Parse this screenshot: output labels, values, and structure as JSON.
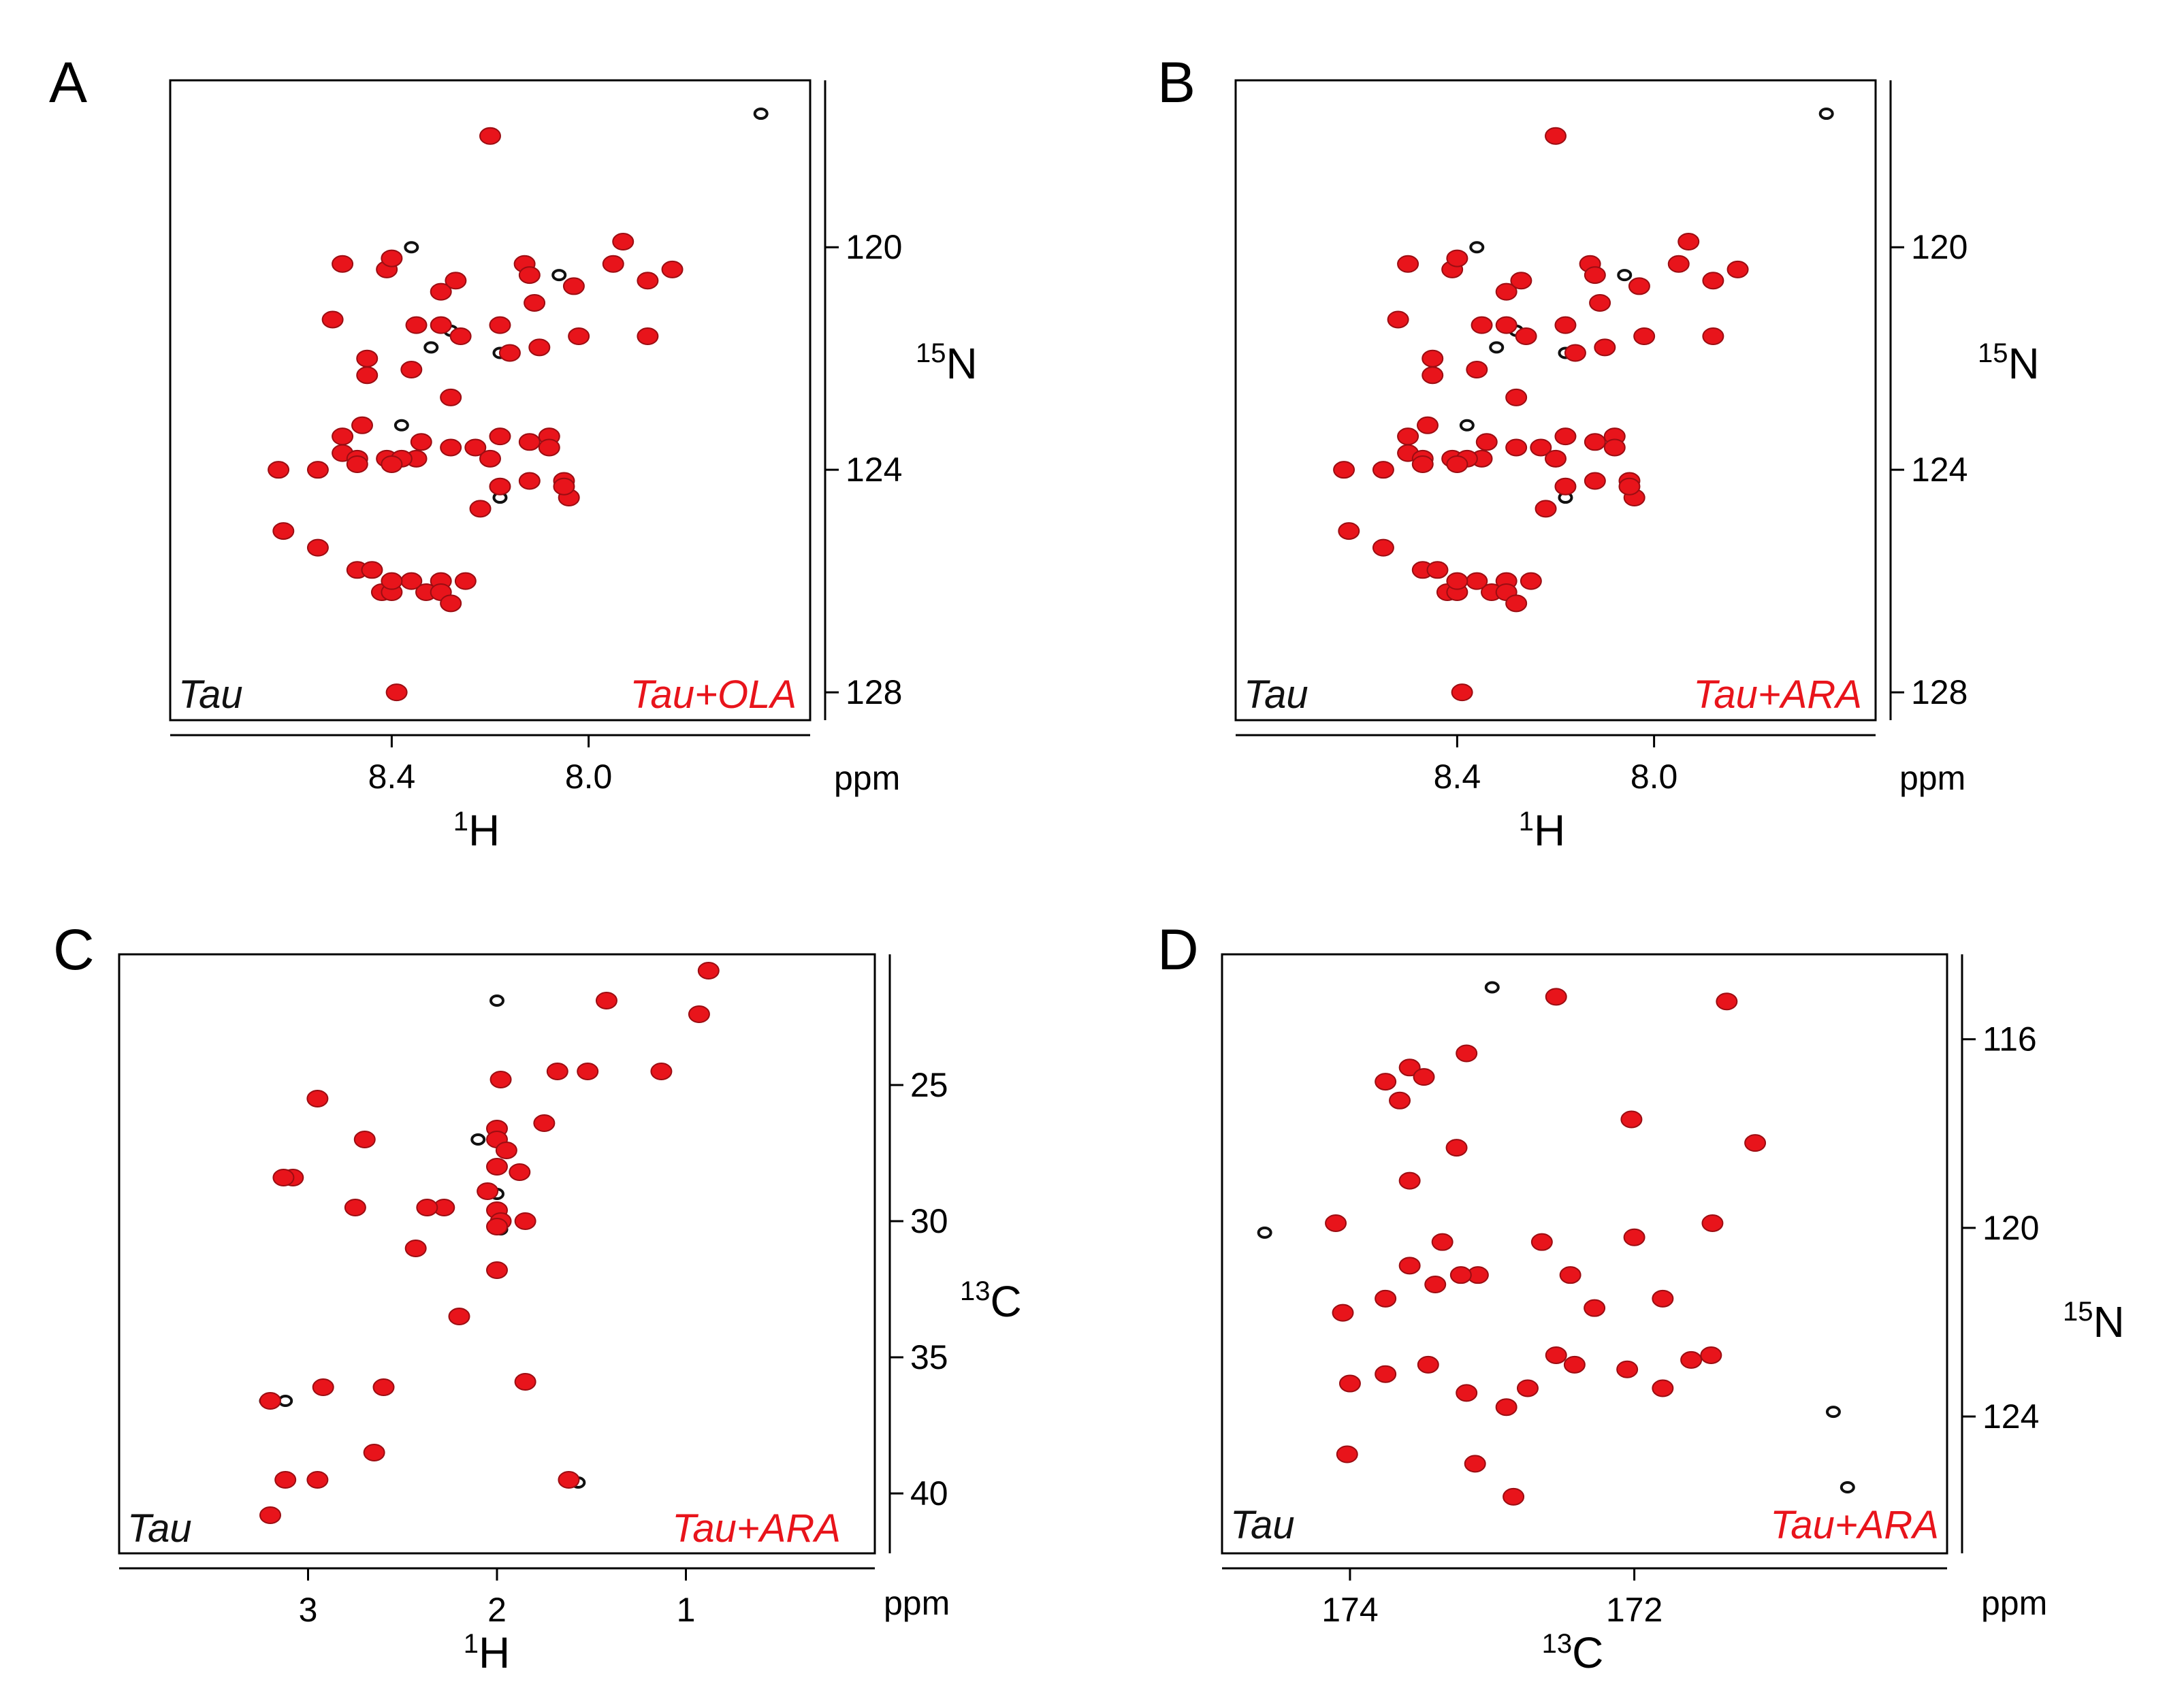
{
  "colors": {
    "reference": "#111111",
    "treated": "#e8141b"
  },
  "chart_data": [
    {
      "panel": "A",
      "type": "scatter",
      "x_nucleus": "1H",
      "x_iso": "1",
      "x_element": "H",
      "y_nucleus": "15N",
      "y_iso": "15",
      "y_element": "N",
      "unit": "ppm",
      "xlim": [
        8.85,
        7.55
      ],
      "ylim": [
        117.0,
        128.5
      ],
      "xticks": [
        8.4,
        8.0
      ],
      "xtick_labels": [
        "8.4",
        "8.0"
      ],
      "yticks": [
        120,
        124,
        128
      ],
      "ytick_labels": [
        "120",
        "124",
        "128"
      ],
      "legend_reference": "Tau",
      "legend_treated": "Tau+OLA",
      "series": [
        {
          "name": "Tau",
          "x": [
            7.65,
            8.28,
            8.32,
            8.36,
            8.18,
            8.06,
            8.38,
            8.18
          ],
          "y": [
            117.6,
            121.5,
            121.8,
            120.0,
            121.9,
            120.5,
            123.2,
            124.5
          ]
        },
        {
          "name": "Tau+OLA",
          "x": [
            8.2,
            8.5,
            8.41,
            8.3,
            8.4,
            8.27,
            8.13,
            7.95,
            7.93,
            7.83,
            7.88,
            8.03,
            8.12,
            8.11,
            8.18,
            8.16,
            8.1,
            8.02,
            7.88,
            8.52,
            8.35,
            8.3,
            8.26,
            8.45,
            8.45,
            8.36,
            8.28,
            8.23,
            8.34,
            8.46,
            8.5,
            8.5,
            8.41,
            8.18,
            8.12,
            8.08,
            8.08,
            8.2,
            8.35,
            8.63,
            8.55,
            8.47,
            8.47,
            8.38,
            8.4,
            8.22,
            8.62,
            8.55,
            8.47,
            8.44,
            8.3,
            8.25,
            8.42,
            8.33,
            8.3,
            8.36,
            8.4,
            8.4,
            8.28,
            8.39,
            8.28,
            8.18,
            8.04,
            8.12,
            8.05,
            8.05
          ],
          "y": [
            118.0,
            120.3,
            120.4,
            120.8,
            120.2,
            120.6,
            120.3,
            120.3,
            119.9,
            120.4,
            120.6,
            120.7,
            120.5,
            121.0,
            121.4,
            121.9,
            121.8,
            121.6,
            121.6,
            121.3,
            121.4,
            121.4,
            121.6,
            122.0,
            122.3,
            122.2,
            122.7,
            123.6,
            123.5,
            123.2,
            123.4,
            123.7,
            123.8,
            123.4,
            123.5,
            123.4,
            123.6,
            123.8,
            123.8,
            124.0,
            124.0,
            123.8,
            123.9,
            123.8,
            123.9,
            124.7,
            125.1,
            125.4,
            125.8,
            125.8,
            126.0,
            126.0,
            126.2,
            126.2,
            126.2,
            126.0,
            126.2,
            126.0,
            126.4,
            128.0,
            123.6,
            124.3,
            124.5,
            124.2,
            124.2,
            124.3
          ]
        }
      ]
    },
    {
      "panel": "B",
      "type": "scatter",
      "x_nucleus": "1H",
      "x_iso": "1",
      "x_element": "H",
      "y_nucleus": "15N",
      "y_iso": "15",
      "y_element": "N",
      "unit": "ppm",
      "xlim": [
        8.85,
        7.55
      ],
      "ylim": [
        117.0,
        128.5
      ],
      "xticks": [
        8.4,
        8.0
      ],
      "xtick_labels": [
        "8.4",
        "8.0"
      ],
      "yticks": [
        120,
        124,
        128
      ],
      "ytick_labels": [
        "120",
        "124",
        "128"
      ],
      "legend_reference": "Tau",
      "legend_treated": "Tau+ARA",
      "series": [
        {
          "name": "Tau",
          "x": [
            7.65,
            8.28,
            8.32,
            8.36,
            8.18,
            8.06,
            8.38,
            8.18
          ],
          "y": [
            117.6,
            121.5,
            121.8,
            120.0,
            121.9,
            120.5,
            123.2,
            124.5
          ]
        },
        {
          "name": "Tau+ARA",
          "x": [
            8.2,
            8.5,
            8.41,
            8.3,
            8.4,
            8.27,
            8.13,
            7.95,
            7.93,
            7.83,
            7.88,
            8.03,
            8.12,
            8.11,
            8.18,
            8.16,
            8.1,
            8.02,
            7.88,
            8.52,
            8.35,
            8.3,
            8.26,
            8.45,
            8.45,
            8.36,
            8.28,
            8.23,
            8.34,
            8.46,
            8.5,
            8.5,
            8.41,
            8.18,
            8.12,
            8.08,
            8.08,
            8.2,
            8.35,
            8.63,
            8.55,
            8.47,
            8.47,
            8.38,
            8.4,
            8.22,
            8.62,
            8.55,
            8.47,
            8.44,
            8.3,
            8.25,
            8.42,
            8.33,
            8.3,
            8.36,
            8.4,
            8.4,
            8.28,
            8.39,
            8.28,
            8.18,
            8.04,
            8.12,
            8.05,
            8.05
          ],
          "y": [
            118.0,
            120.3,
            120.4,
            120.8,
            120.2,
            120.6,
            120.3,
            120.3,
            119.9,
            120.4,
            120.6,
            120.7,
            120.5,
            121.0,
            121.4,
            121.9,
            121.8,
            121.6,
            121.6,
            121.3,
            121.4,
            121.4,
            121.6,
            122.0,
            122.3,
            122.2,
            122.7,
            123.6,
            123.5,
            123.2,
            123.4,
            123.7,
            123.8,
            123.4,
            123.5,
            123.4,
            123.6,
            123.8,
            123.8,
            124.0,
            124.0,
            123.8,
            123.9,
            123.8,
            123.9,
            124.7,
            125.1,
            125.4,
            125.8,
            125.8,
            126.0,
            126.0,
            126.2,
            126.2,
            126.2,
            126.0,
            126.2,
            126.0,
            126.4,
            128.0,
            123.6,
            124.3,
            124.5,
            124.2,
            124.2,
            124.3
          ]
        }
      ]
    },
    {
      "panel": "C",
      "type": "scatter",
      "x_nucleus": "1H",
      "x_iso": "1",
      "x_element": "H",
      "y_nucleus": "13C",
      "y_iso": "13",
      "y_element": "C",
      "unit": "ppm",
      "xlim": [
        4.0,
        0.0
      ],
      "ylim": [
        20.2,
        42.2
      ],
      "xticks": [
        3,
        2,
        1
      ],
      "xtick_labels": [
        "3",
        "2",
        "1"
      ],
      "yticks": [
        25,
        30,
        35,
        40
      ],
      "ytick_labels": [
        "25",
        "30",
        "35",
        "40"
      ],
      "legend_reference": "Tau",
      "legend_treated": "Tau+ARA",
      "series": [
        {
          "name": "Tau",
          "x": [
            2.0,
            1.98,
            1.57,
            3.22,
            3.12,
            2.0,
            2.1
          ],
          "y": [
            21.9,
            30.3,
            39.6,
            36.6,
            36.6,
            29.0,
            27.0
          ]
        },
        {
          "name": "Tau+ARA",
          "x": [
            0.88,
            0.93,
            1.42,
            1.52,
            1.13,
            1.68,
            1.98,
            2.0,
            1.75,
            2.0,
            2.0,
            1.95,
            2.05,
            1.88,
            2.0,
            1.98,
            1.85,
            2.0,
            2.28,
            2.37,
            2.43,
            2.7,
            2.75,
            2.95,
            3.08,
            3.13,
            2.0,
            2.2,
            1.85,
            2.92,
            2.6,
            3.2,
            3.12,
            2.95,
            2.65,
            1.62,
            3.2
          ],
          "y": [
            20.8,
            22.4,
            21.9,
            24.5,
            24.5,
            24.5,
            24.8,
            26.6,
            26.4,
            27.0,
            28.0,
            27.4,
            28.9,
            28.2,
            29.6,
            30.0,
            30.0,
            30.2,
            29.5,
            29.5,
            31.0,
            27.0,
            29.5,
            25.5,
            28.4,
            28.4,
            31.8,
            33.5,
            35.9,
            36.1,
            36.1,
            36.6,
            39.5,
            39.5,
            38.5,
            39.5,
            40.8
          ]
        }
      ]
    },
    {
      "panel": "D",
      "type": "scatter",
      "x_nucleus": "13C",
      "x_iso": "13",
      "x_element": "C",
      "y_nucleus": "15N",
      "y_iso": "15",
      "y_element": "N",
      "unit": "ppm",
      "xlim": [
        174.9,
        169.8
      ],
      "ylim": [
        114.2,
        126.9
      ],
      "xticks": [
        174,
        172
      ],
      "xtick_labels": [
        "174",
        "172"
      ],
      "yticks": [
        116,
        120,
        124
      ],
      "ytick_labels": [
        "116",
        "120",
        "124"
      ],
      "legend_reference": "Tau",
      "legend_treated": "Tau+ARA",
      "series": [
        {
          "name": "Tau",
          "x": [
            174.6,
            173.0,
            170.6,
            170.5
          ],
          "y": [
            120.1,
            114.9,
            123.9,
            125.5
          ]
        },
        {
          "name": "Tau+ARA",
          "x": [
            172.55,
            171.35,
            173.75,
            173.58,
            173.48,
            173.18,
            173.65,
            173.25,
            172.02,
            171.15,
            174.1,
            173.58,
            173.35,
            173.1,
            172.65,
            172.45,
            172.28,
            172.0,
            171.8,
            171.45,
            174.05,
            173.75,
            173.58,
            173.4,
            173.22,
            172.55,
            174.0,
            173.75,
            173.45,
            173.18,
            172.9,
            172.75,
            172.42,
            172.05,
            171.8,
            171.6,
            171.46,
            174.02,
            173.12,
            172.85
          ],
          "y": [
            115.1,
            115.2,
            116.9,
            116.6,
            116.8,
            116.3,
            117.3,
            118.3,
            117.7,
            118.2,
            119.9,
            119.0,
            120.3,
            121.0,
            120.3,
            121.0,
            121.7,
            120.2,
            121.5,
            119.9,
            121.8,
            121.5,
            120.8,
            121.2,
            121.0,
            122.7,
            123.3,
            123.1,
            122.9,
            123.5,
            123.8,
            123.4,
            122.9,
            123.0,
            123.4,
            122.8,
            122.7,
            124.8,
            125.0,
            125.7
          ]
        }
      ]
    }
  ]
}
